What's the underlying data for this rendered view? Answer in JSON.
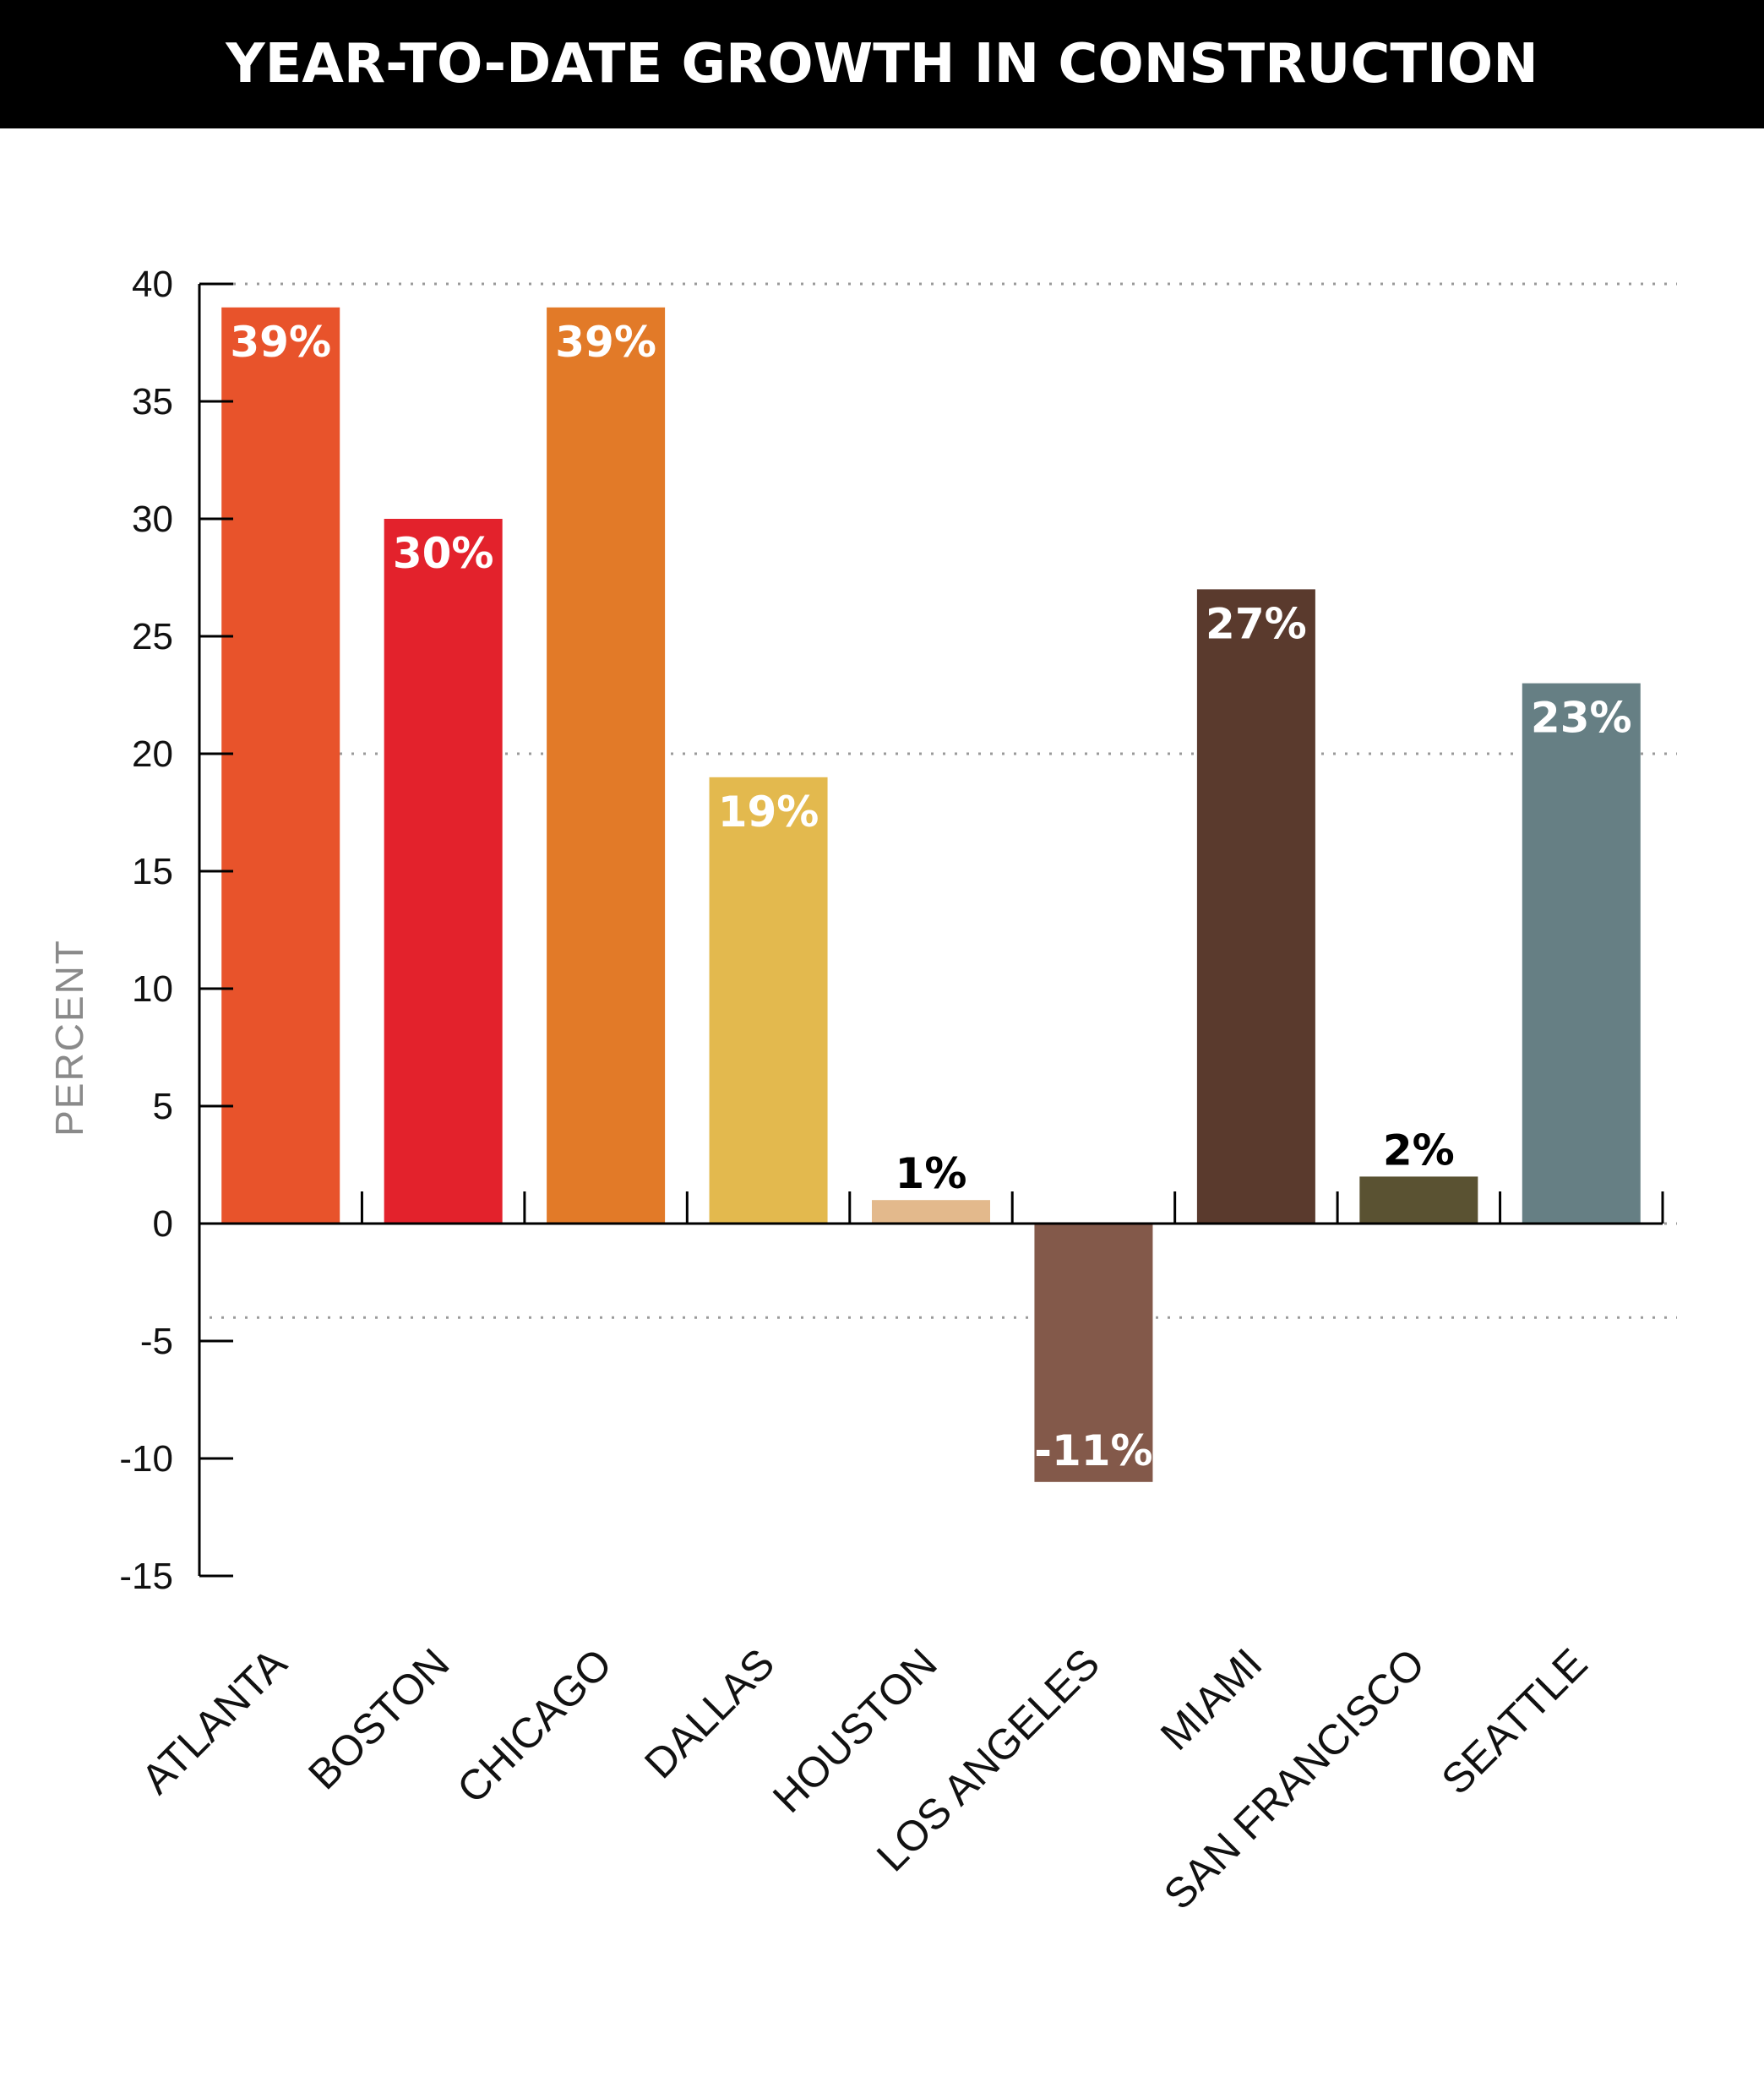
{
  "chart_data": {
    "type": "bar",
    "title": "YEAR-TO-DATE GROWTH IN CONSTRUCTION",
    "xlabel": "",
    "ylabel": "PERCENT",
    "ylim": [
      -15,
      40
    ],
    "yticks": [
      40,
      35,
      30,
      25,
      20,
      15,
      10,
      5,
      0,
      -5,
      -10,
      -15
    ],
    "gridlines": [
      40,
      20,
      0,
      -4
    ],
    "grid_style": "dotted",
    "categories": [
      "ATLANTA",
      "BOSTON",
      "CHICAGO",
      "DALLAS",
      "HOUSTON",
      "LOS ANGELES",
      "MIAMI",
      "SAN FRANCISCO",
      "SEATTLE"
    ],
    "values": [
      39,
      30,
      39,
      19,
      1,
      -11,
      27,
      2,
      23
    ],
    "data_labels": [
      "39%",
      "30%",
      "39%",
      "19%",
      "1%",
      "-11%",
      "27%",
      "2%",
      "23%"
    ],
    "colors": [
      "#E8532B",
      "#E3222C",
      "#E27A28",
      "#E3B94E",
      "#E3B98C",
      "#83594A",
      "#5A3A2D",
      "#5A5232",
      "#667F84"
    ],
    "label_colors": [
      "#ffffff",
      "#ffffff",
      "#ffffff",
      "#ffffff",
      "#000000",
      "#ffffff",
      "#ffffff",
      "#000000",
      "#ffffff"
    ]
  }
}
